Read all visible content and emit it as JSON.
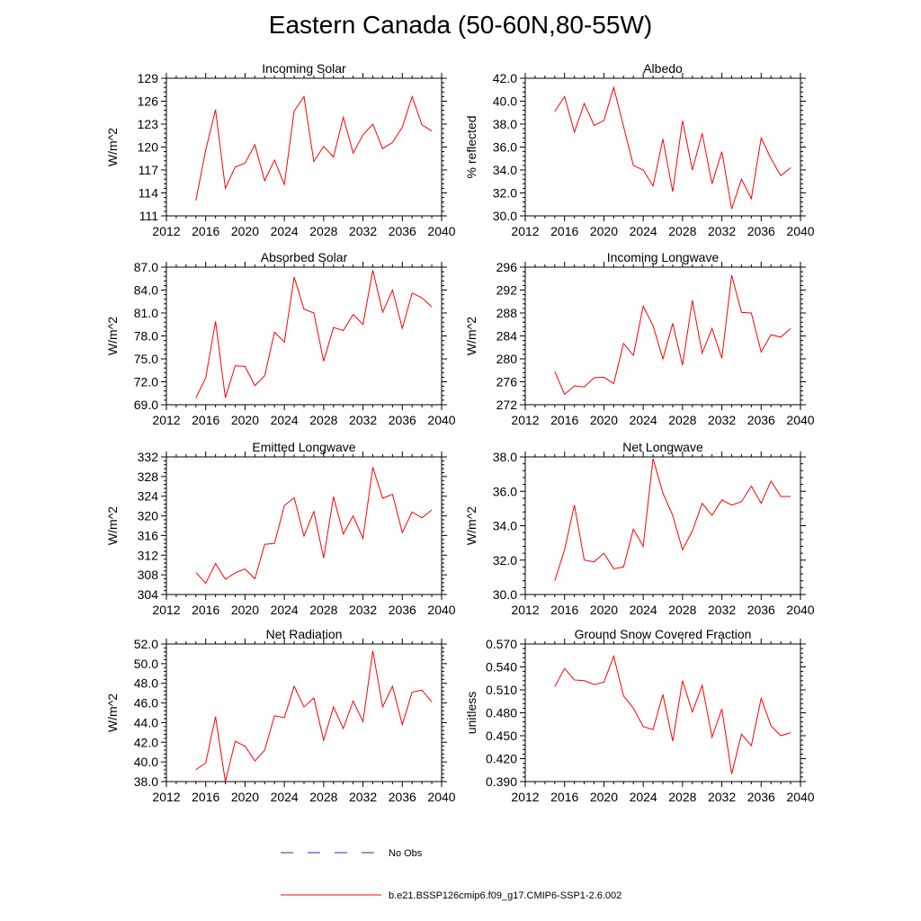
{
  "figure_title": "Eastern Canada (50-60N,80-55W)",
  "colors": {
    "model": "#ff0000",
    "obs": "#2b2bb0",
    "axis": "#000000"
  },
  "legend": {
    "obs_label": "No Obs",
    "model_label": "b.e21.BSSP126cmip6.f09_g17.CMIP6-SSP1-2.6.002"
  },
  "chart_data": [
    {
      "type": "line",
      "title": "Incoming Solar",
      "xlabel": "",
      "ylabel": "W/m^2",
      "xlim": [
        2012,
        2040
      ],
      "xticks": [
        "2012",
        "2016",
        "2020",
        "2024",
        "2028",
        "2032",
        "2036",
        "2040"
      ],
      "ylim": [
        111,
        129
      ],
      "yticks": [
        "111",
        "114",
        "117",
        "120",
        "123",
        "126",
        "129"
      ],
      "x": [
        2015,
        2016,
        2017,
        2018,
        2019,
        2020,
        2021,
        2022,
        2023,
        2024,
        2025,
        2026,
        2027,
        2028,
        2029,
        2030,
        2031,
        2032,
        2033,
        2034,
        2035,
        2036,
        2037,
        2038,
        2039
      ],
      "series": [
        {
          "name": "b.e21.BSSP126cmip6.f09_g17.CMIP6-SSP1-2.6.002",
          "values": [
            113.0,
            119.6,
            124.9,
            114.6,
            117.4,
            117.9,
            120.3,
            115.6,
            118.3,
            115.1,
            124.7,
            126.6,
            118.1,
            120.1,
            118.7,
            123.9,
            119.2,
            121.6,
            123.0,
            119.8,
            120.6,
            122.6,
            126.6,
            122.9,
            122.1
          ]
        }
      ]
    },
    {
      "type": "line",
      "title": "Albedo",
      "xlabel": "",
      "ylabel": "% reflected",
      "xlim": [
        2012,
        2040
      ],
      "xticks": [
        "2012",
        "2016",
        "2020",
        "2024",
        "2028",
        "2032",
        "2036",
        "2040"
      ],
      "ylim": [
        30,
        42
      ],
      "yticks": [
        "30.0",
        "32.0",
        "34.0",
        "36.0",
        "38.0",
        "40.0",
        "42.0"
      ],
      "x": [
        2015,
        2016,
        2017,
        2018,
        2019,
        2020,
        2021,
        2022,
        2023,
        2024,
        2025,
        2026,
        2027,
        2028,
        2029,
        2030,
        2031,
        2032,
        2033,
        2034,
        2035,
        2036,
        2037,
        2038,
        2039
      ],
      "series": [
        {
          "name": "b.e21.BSSP126cmip6.f09_g17.CMIP6-SSP1-2.6.002",
          "values": [
            39.1,
            40.4,
            37.3,
            39.8,
            37.9,
            38.3,
            41.2,
            37.8,
            34.4,
            34.0,
            32.6,
            36.7,
            32.1,
            38.3,
            34.0,
            37.2,
            32.8,
            35.6,
            30.6,
            33.2,
            31.5,
            36.8,
            35.0,
            33.5,
            34.2
          ]
        }
      ]
    },
    {
      "type": "line",
      "title": "Absorbed Solar",
      "xlabel": "",
      "ylabel": "W/m^2",
      "xlim": [
        2012,
        2040
      ],
      "xticks": [
        "2012",
        "2016",
        "2020",
        "2024",
        "2028",
        "2032",
        "2036",
        "2040"
      ],
      "ylim": [
        69,
        87
      ],
      "yticks": [
        "69.0",
        "72.0",
        "75.0",
        "78.0",
        "81.0",
        "84.0",
        "87.0"
      ],
      "x": [
        2015,
        2016,
        2017,
        2018,
        2019,
        2020,
        2021,
        2022,
        2023,
        2024,
        2025,
        2026,
        2027,
        2028,
        2029,
        2030,
        2031,
        2032,
        2033,
        2034,
        2035,
        2036,
        2037,
        2038,
        2039
      ],
      "series": [
        {
          "name": "b.e21.BSSP126cmip6.f09_g17.CMIP6-SSP1-2.6.002",
          "values": [
            69.9,
            72.5,
            79.9,
            69.9,
            74.1,
            74.0,
            71.5,
            72.8,
            78.5,
            77.2,
            85.7,
            81.5,
            81.0,
            74.7,
            79.1,
            78.7,
            80.8,
            79.5,
            86.6,
            81.1,
            84.0,
            79.0,
            83.6,
            83.0,
            81.8
          ]
        }
      ]
    },
    {
      "type": "line",
      "title": "Incoming Longwave",
      "xlabel": "",
      "ylabel": "W/m^2",
      "xlim": [
        2012,
        2040
      ],
      "xticks": [
        "2012",
        "2016",
        "2020",
        "2024",
        "2028",
        "2032",
        "2036",
        "2040"
      ],
      "ylim": [
        272,
        296
      ],
      "yticks": [
        "272",
        "276",
        "280",
        "284",
        "288",
        "292",
        "296"
      ],
      "x": [
        2015,
        2016,
        2017,
        2018,
        2019,
        2020,
        2021,
        2022,
        2023,
        2024,
        2025,
        2026,
        2027,
        2028,
        2029,
        2030,
        2031,
        2032,
        2033,
        2034,
        2035,
        2036,
        2037,
        2038,
        2039
      ],
      "series": [
        {
          "name": "b.e21.BSSP126cmip6.f09_g17.CMIP6-SSP1-2.6.002",
          "values": [
            277.8,
            273.8,
            275.3,
            275.1,
            276.7,
            276.8,
            275.7,
            282.7,
            280.6,
            289.2,
            285.8,
            280.0,
            286.2,
            278.9,
            290.2,
            281.0,
            285.3,
            280.1,
            294.6,
            288.1,
            288.0,
            281.2,
            284.2,
            283.8,
            285.3
          ]
        }
      ]
    },
    {
      "type": "line",
      "title": "Emitted Longwave",
      "xlabel": "",
      "ylabel": "W/m^2",
      "xlim": [
        2012,
        2040
      ],
      "xticks": [
        "2012",
        "2016",
        "2020",
        "2024",
        "2028",
        "2032",
        "2036",
        "2040"
      ],
      "ylim": [
        304,
        332
      ],
      "yticks": [
        "304",
        "308",
        "312",
        "316",
        "320",
        "324",
        "328",
        "332"
      ],
      "x": [
        2015,
        2016,
        2017,
        2018,
        2019,
        2020,
        2021,
        2022,
        2023,
        2024,
        2025,
        2026,
        2027,
        2028,
        2029,
        2030,
        2031,
        2032,
        2033,
        2034,
        2035,
        2036,
        2037,
        2038,
        2039
      ],
      "series": [
        {
          "name": "b.e21.BSSP126cmip6.f09_g17.CMIP6-SSP1-2.6.002",
          "values": [
            308.5,
            306.3,
            310.3,
            307.1,
            308.4,
            309.2,
            307.2,
            314.2,
            314.4,
            322.1,
            323.7,
            315.9,
            320.9,
            311.4,
            323.9,
            316.3,
            320.0,
            315.4,
            329.9,
            323.6,
            324.4,
            316.6,
            320.8,
            319.6,
            321.2
          ]
        }
      ]
    },
    {
      "type": "line",
      "title": "Net Longwave",
      "xlabel": "",
      "ylabel": "W/m^2",
      "xlim": [
        2012,
        2040
      ],
      "xticks": [
        "2012",
        "2016",
        "2020",
        "2024",
        "2028",
        "2032",
        "2036",
        "2040"
      ],
      "ylim": [
        30,
        38
      ],
      "yticks": [
        "30.0",
        "32.0",
        "34.0",
        "36.0",
        "38.0"
      ],
      "x": [
        2015,
        2016,
        2017,
        2018,
        2019,
        2020,
        2021,
        2022,
        2023,
        2024,
        2025,
        2026,
        2027,
        2028,
        2029,
        2030,
        2031,
        2032,
        2033,
        2034,
        2035,
        2036,
        2037,
        2038,
        2039
      ],
      "series": [
        {
          "name": "b.e21.BSSP126cmip6.f09_g17.CMIP6-SSP1-2.6.002",
          "values": [
            30.8,
            32.6,
            35.2,
            32.0,
            31.9,
            32.4,
            31.5,
            31.6,
            33.8,
            32.8,
            37.9,
            35.9,
            34.6,
            32.6,
            33.7,
            35.3,
            34.6,
            35.5,
            35.2,
            35.4,
            36.3,
            35.3,
            36.6,
            35.7,
            35.7
          ]
        }
      ]
    },
    {
      "type": "line",
      "title": "Net Radiation",
      "xlabel": "",
      "ylabel": "W/m^2",
      "xlim": [
        2012,
        2040
      ],
      "xticks": [
        "2012",
        "2016",
        "2020",
        "2024",
        "2028",
        "2032",
        "2036",
        "2040"
      ],
      "ylim": [
        38,
        52
      ],
      "yticks": [
        "38.0",
        "40.0",
        "42.0",
        "44.0",
        "46.0",
        "48.0",
        "50.0",
        "52.0"
      ],
      "x": [
        2015,
        2016,
        2017,
        2018,
        2019,
        2020,
        2021,
        2022,
        2023,
        2024,
        2025,
        2026,
        2027,
        2028,
        2029,
        2030,
        2031,
        2032,
        2033,
        2034,
        2035,
        2036,
        2037,
        2038,
        2039
      ],
      "series": [
        {
          "name": "b.e21.BSSP126cmip6.f09_g17.CMIP6-SSP1-2.6.002",
          "values": [
            39.2,
            39.9,
            44.6,
            38.0,
            42.1,
            41.6,
            40.1,
            41.2,
            44.7,
            44.5,
            47.7,
            45.6,
            46.5,
            42.2,
            45.6,
            43.4,
            46.2,
            44.1,
            51.3,
            45.6,
            47.7,
            43.8,
            47.1,
            47.3,
            46.1
          ]
        }
      ]
    },
    {
      "type": "line",
      "title": "Ground Snow Covered Fraction",
      "xlabel": "",
      "ylabel": "unitless",
      "xlim": [
        2012,
        2040
      ],
      "xticks": [
        "2012",
        "2016",
        "2020",
        "2024",
        "2028",
        "2032",
        "2036",
        "2040"
      ],
      "ylim": [
        0.39,
        0.57
      ],
      "yticks": [
        "0.390",
        "0.420",
        "0.450",
        "0.480",
        "0.510",
        "0.540",
        "0.570"
      ],
      "x": [
        2015,
        2016,
        2017,
        2018,
        2019,
        2020,
        2021,
        2022,
        2023,
        2024,
        2025,
        2026,
        2027,
        2028,
        2029,
        2030,
        2031,
        2032,
        2033,
        2034,
        2035,
        2036,
        2037,
        2038,
        2039
      ],
      "series": [
        {
          "name": "b.e21.BSSP126cmip6.f09_g17.CMIP6-SSP1-2.6.002",
          "values": [
            0.514,
            0.538,
            0.523,
            0.522,
            0.517,
            0.52,
            0.554,
            0.502,
            0.486,
            0.462,
            0.458,
            0.504,
            0.443,
            0.522,
            0.481,
            0.516,
            0.448,
            0.485,
            0.4,
            0.452,
            0.437,
            0.499,
            0.463,
            0.45,
            0.454
          ]
        }
      ]
    }
  ]
}
